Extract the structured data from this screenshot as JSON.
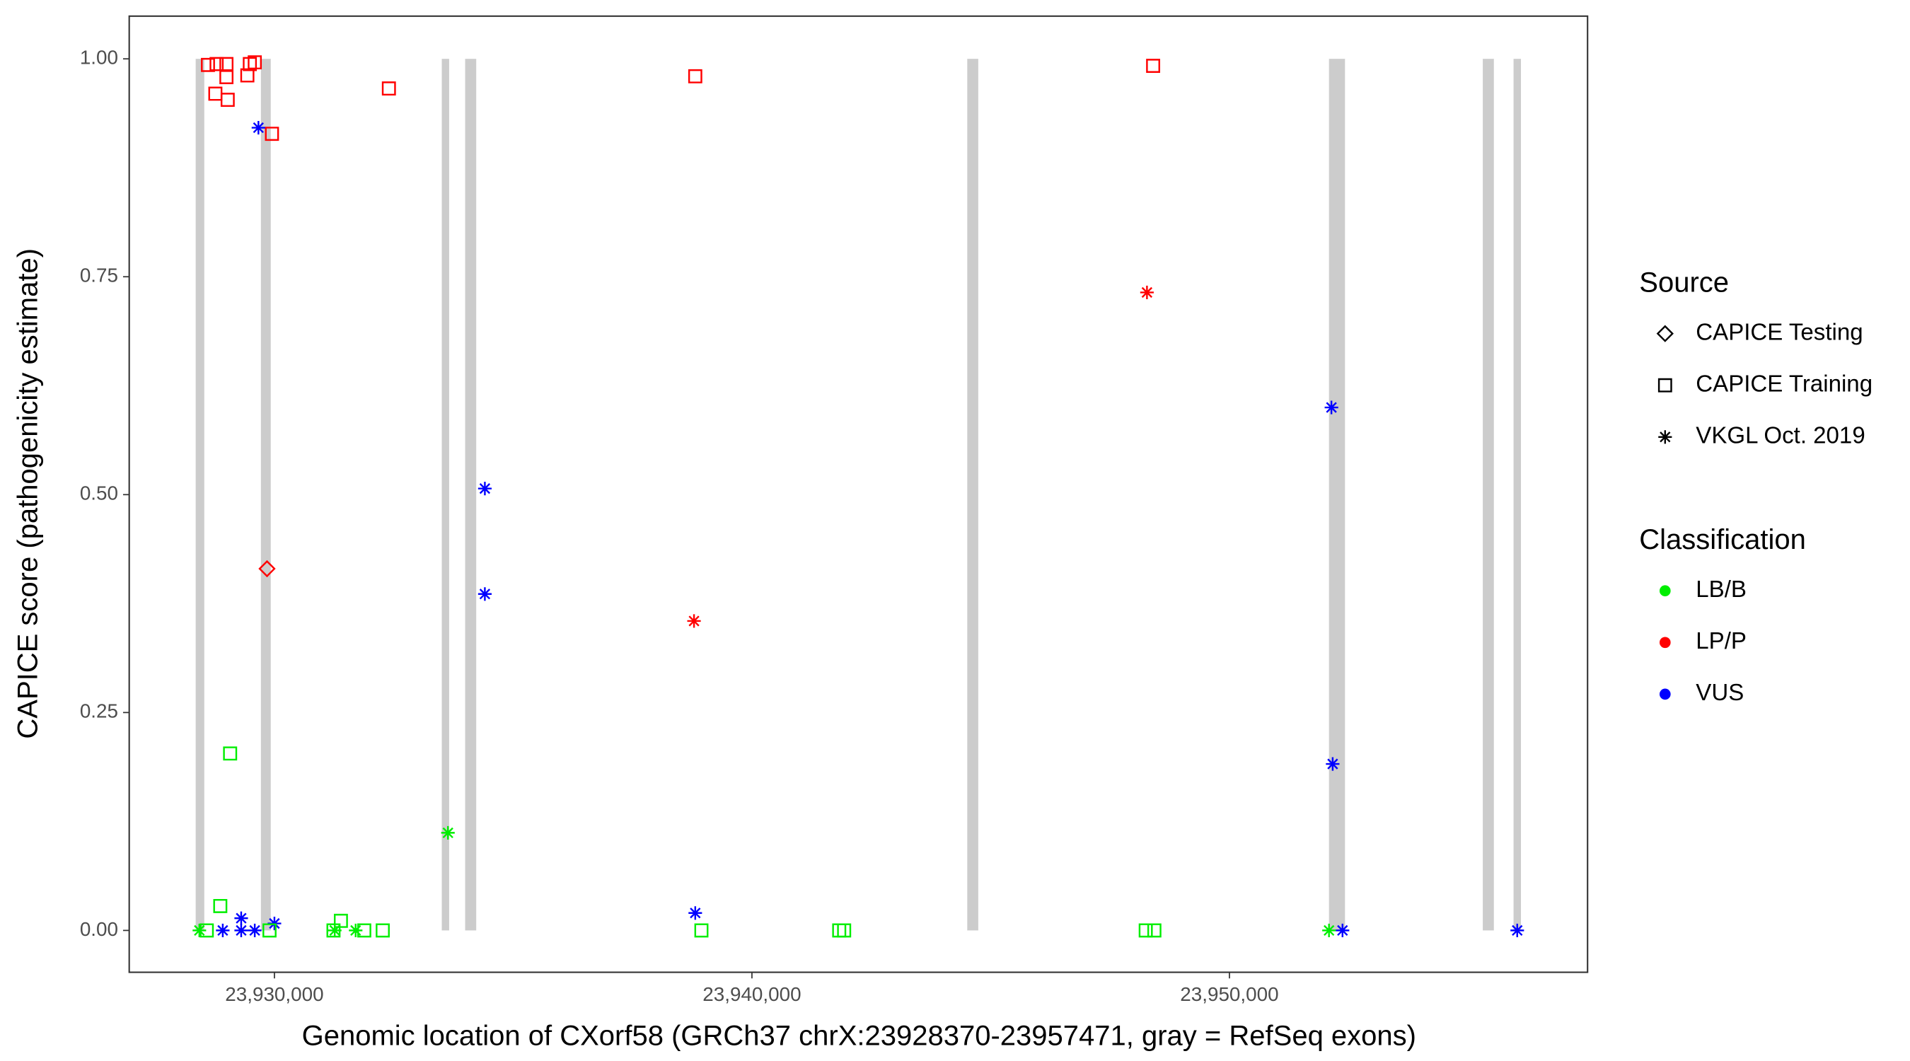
{
  "chart_data": {
    "type": "scatter",
    "x_label": "Genomic location of CXorf58 (GRCh37 chrX:23928370-23957471, gray = RefSeq exons)",
    "y_label": "CAPICE score (pathogenicity estimate)",
    "xlim": [
      23926959,
      23957500
    ],
    "ylim": [
      -0.048,
      1.049
    ],
    "xticks": [
      {
        "value": 23930000,
        "label": "23,930,000"
      },
      {
        "value": 23940000,
        "label": "23,940,000"
      },
      {
        "value": 23950000,
        "label": "23,950,000"
      }
    ],
    "yticks": [
      {
        "value": 0,
        "label": "0.00"
      },
      {
        "value": 0.25,
        "label": "0.25"
      },
      {
        "value": 0.5,
        "label": "0.50"
      },
      {
        "value": 0.75,
        "label": "0.75"
      },
      {
        "value": 1,
        "label": "1.00"
      }
    ],
    "exon_color": "#cccccc",
    "exons": [
      [
        23928351,
        23928531
      ],
      [
        23929717,
        23929923
      ],
      [
        23933505,
        23933659
      ],
      [
        23933994,
        23934226
      ],
      [
        23944509,
        23944740
      ],
      [
        23952085,
        23952420
      ],
      [
        23955306,
        23955538
      ],
      [
        23955950,
        23956105
      ]
    ],
    "legends": {
      "source": {
        "title": "Source",
        "entries": [
          {
            "name": "CAPICE Testing",
            "shape": "diamond"
          },
          {
            "name": "CAPICE Training",
            "shape": "square"
          },
          {
            "name": "VKGL Oct. 2019",
            "shape": "asterisk"
          }
        ]
      },
      "classification": {
        "title": "Classification",
        "entries": [
          {
            "name": "LB/B",
            "color": "#00ee00"
          },
          {
            "name": "LP/P",
            "color": "#ff0000"
          },
          {
            "name": "VUS",
            "color": "#0000ff"
          }
        ]
      }
    },
    "series": [
      {
        "source": "CAPICE Training",
        "classification": "LP/P",
        "x": [
          23928608,
          23928789,
          23928995,
          23929485,
          23929588,
          23929433,
          23928995,
          23928763,
          23929021,
          23929948,
          23932397,
          23938813,
          23948402
        ],
        "y": [
          0.993,
          0.994,
          0.994,
          0.994,
          0.996,
          0.981,
          0.979,
          0.96,
          0.953,
          0.914,
          0.966,
          0.98,
          0.992
        ]
      },
      {
        "source": "CAPICE Testing",
        "classification": "LP/P",
        "x": [
          23929845
        ],
        "y": [
          0.415
        ]
      },
      {
        "source": "VKGL Oct. 2019",
        "classification": "LP/P",
        "x": [
          23938787,
          23948273
        ],
        "y": [
          0.355,
          0.732
        ]
      },
      {
        "source": "VKGL Oct. 2019",
        "classification": "VUS",
        "x": [
          23929665,
          23934407,
          23934407,
          23938813,
          23952136,
          23952162,
          23952368,
          23956027,
          23928918,
          23929304,
          23929304,
          23929588,
          23930000
        ],
        "y": [
          0.921,
          0.507,
          0.386,
          0.02,
          0.6,
          0.191,
          0,
          0,
          0,
          0.014,
          0,
          0,
          0.008
        ]
      },
      {
        "source": "VKGL Oct. 2019",
        "classification": "LB/B",
        "x": [
          23928428,
          23933634,
          23952085,
          23931263,
          23931701
        ],
        "y": [
          0,
          0.112,
          0,
          0,
          0
        ]
      },
      {
        "source": "CAPICE Training",
        "classification": "LB/B",
        "x": [
          23929072,
          23928866,
          23928583,
          23929897,
          23931237,
          23931392,
          23931881,
          23932268,
          23938942,
          23941828,
          23941931,
          23948247,
          23948428
        ],
        "y": [
          0.203,
          0.028,
          0,
          0,
          0,
          0.011,
          0,
          0,
          0,
          0,
          0,
          0,
          0
        ]
      }
    ]
  }
}
